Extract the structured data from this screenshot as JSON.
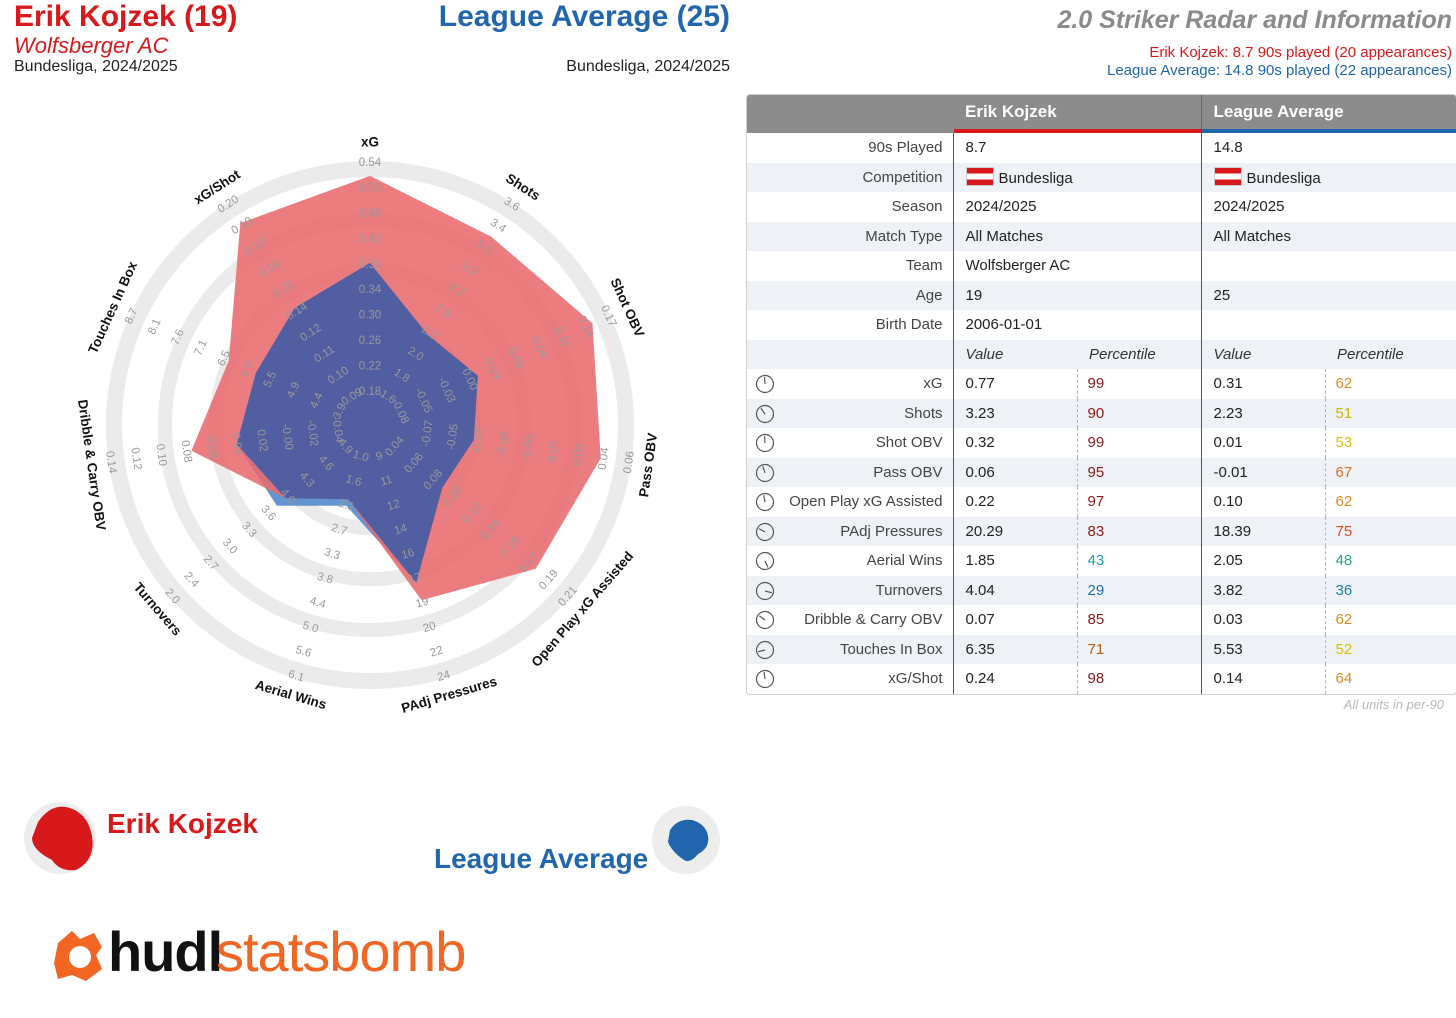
{
  "header": {
    "player_name": "Erik Kojzek (19)",
    "player_team": "Wolfsberger AC",
    "player_comp": "Bundesliga, 2024/2025",
    "avg_name": "League Average (25)",
    "avg_comp": "Bundesliga, 2024/2025",
    "radar_title": "2.0 Striker Radar and Information",
    "player_played": "Erik Kojzek: 8.7 90s played (20 appearances)",
    "avg_played": "League Average: 14.8 90s played (22 appearances)"
  },
  "colors": {
    "player": "#d7191c",
    "player_fill": "#e86b6e",
    "average": "#2166ac",
    "average_fill": "#3a5ba8",
    "ring": "#ebebeb",
    "header_grey": "#8c8c8c",
    "orange": "#f26522"
  },
  "chart_data": {
    "type": "radar",
    "axes": [
      {
        "name": "xG",
        "ticks": [
          "0.18",
          "0.22",
          "0.26",
          "0.30",
          "0.34",
          "0.38",
          "0.42",
          "0.46",
          "0.50",
          "0.54"
        ],
        "player": 0.97,
        "average": 0.59
      },
      {
        "name": "Shots",
        "ticks": [
          "1.6",
          "1.8",
          "2.0",
          "2.2",
          "2.5",
          "2.7",
          "2.9",
          "3.1",
          "3.4",
          "3.6"
        ],
        "player": 0.86,
        "average": 0.35
      },
      {
        "name": "Shot OBV",
        "ticks": [
          "-0.08",
          "-0.05",
          "-0.03",
          "0.00",
          "0.03",
          "0.06",
          "0.09",
          "0.11",
          "0.14",
          "0.17"
        ],
        "player": 0.95,
        "average": 0.4
      },
      {
        "name": "Pass OBV",
        "ticks": [
          "-0.07",
          "-0.05",
          "-0.03",
          "-0.02",
          "-0.00",
          "0.01",
          "0.03",
          "0.04",
          "0.06"
        ],
        "player": 0.9,
        "average": 0.34
      },
      {
        "name": "Open Play xG Assisted",
        "ticks": [
          "0.04",
          "0.06",
          "0.08",
          "0.10",
          "0.12",
          "0.14",
          "0.16",
          "0.17",
          "0.19",
          "0.21"
        ],
        "player": 0.84,
        "average": 0.3
      },
      {
        "name": "PAdj Pressures",
        "ticks": [
          "9",
          "11",
          "12",
          "14",
          "16",
          "17",
          "19",
          "20",
          "22",
          "24"
        ],
        "player": 0.68,
        "average": 0.6
      },
      {
        "name": "Aerial Wins",
        "ticks": [
          "1.0",
          "1.6",
          "2.1",
          "2.7",
          "3.3",
          "3.8",
          "4.4",
          "5.0",
          "5.6",
          "6.1"
        ],
        "player": 0.22,
        "average": 0.25
      },
      {
        "name": "Turnovers",
        "ticks": [
          "4.9",
          "4.6",
          "4.3",
          "4.0",
          "3.6",
          "3.3",
          "3.0",
          "2.7",
          "2.4",
          "2.0"
        ],
        "player": 0.37,
        "average": 0.42
      },
      {
        "name": "Dribble & Carry OBV",
        "ticks": [
          "-0.04",
          "-0.02",
          "-0.00",
          "0.02",
          "0.04",
          "0.06",
          "0.08",
          "0.10",
          "0.12",
          "0.14"
        ],
        "player": 0.67,
        "average": 0.47
      },
      {
        "name": "Touches In Box",
        "ticks": [
          "3.9",
          "4.4",
          "4.9",
          "5.5",
          "6.0",
          "6.5",
          "7.1",
          "7.6",
          "8.1",
          "8.7"
        ],
        "player": 0.56,
        "average": 0.43
      },
      {
        "name": "xG/Shot",
        "ticks": [
          "0.09",
          "0.10",
          "0.11",
          "0.12",
          "0.14",
          "0.15",
          "0.16",
          "0.17",
          "0.19",
          "0.20"
        ],
        "player": 0.93,
        "average": 0.49
      }
    ]
  },
  "legend": {
    "player_label": "Erik Kojzek",
    "avg_label": "League Average"
  },
  "table": {
    "header_player": "Erik Kojzek",
    "header_avg": "League Average",
    "info": [
      {
        "label": "90s Played",
        "player": "8.7",
        "avg": "14.8"
      },
      {
        "label": "Competition",
        "player": "Bundesliga",
        "avg": "Bundesliga",
        "flag": true
      },
      {
        "label": "Season",
        "player": "2024/2025",
        "avg": "2024/2025"
      },
      {
        "label": "Match Type",
        "player": "All Matches",
        "avg": "All Matches"
      },
      {
        "label": "Team",
        "player": "Wolfsberger AC",
        "avg": ""
      },
      {
        "label": "Age",
        "player": "19",
        "avg": "25"
      },
      {
        "label": "Birth Date",
        "player": "2006-01-01",
        "avg": ""
      }
    ],
    "sub_value": "Value",
    "sub_percentile": "Percentile",
    "metrics": [
      {
        "label": "xG",
        "pv": "0.77",
        "pp": "99",
        "ppc": "#8b1a1a",
        "av": "0.31",
        "ap": "62",
        "apc": "#e08a1e",
        "fill": 0.99
      },
      {
        "label": "Shots",
        "pv": "3.23",
        "pp": "90",
        "ppc": "#8b1a1a",
        "av": "2.23",
        "ap": "51",
        "apc": "#c9b800",
        "fill": 0.9
      },
      {
        "label": "Shot OBV",
        "pv": "0.32",
        "pp": "99",
        "ppc": "#8b1a1a",
        "av": "0.01",
        "ap": "53",
        "apc": "#e0c000",
        "fill": 0.99
      },
      {
        "label": "Pass OBV",
        "pv": "0.06",
        "pp": "95",
        "ppc": "#8b1a1a",
        "av": "-0.01",
        "ap": "67",
        "apc": "#e07020",
        "fill": 0.95
      },
      {
        "label": "Open Play xG Assisted",
        "pv": "0.22",
        "pp": "97",
        "ppc": "#8b1a1a",
        "av": "0.10",
        "ap": "62",
        "apc": "#e08a1e",
        "fill": 0.97
      },
      {
        "label": "PAdj Pressures",
        "pv": "20.29",
        "pp": "83",
        "ppc": "#8b1a1a",
        "av": "18.39",
        "ap": "75",
        "apc": "#d05020",
        "fill": 0.83
      },
      {
        "label": "Aerial Wins",
        "pv": "1.85",
        "pp": "43",
        "ppc": "#1fa0a8",
        "av": "2.05",
        "ap": "48",
        "apc": "#28a890",
        "fill": 0.43
      },
      {
        "label": "Turnovers",
        "pv": "4.04",
        "pp": "29",
        "ppc": "#1f6fa8",
        "av": "3.82",
        "ap": "36",
        "apc": "#1f80a8",
        "fill": 0.29
      },
      {
        "label": "Dribble & Carry OBV",
        "pv": "0.07",
        "pp": "85",
        "ppc": "#8b1a1a",
        "av": "0.03",
        "ap": "62",
        "apc": "#e08a1e",
        "fill": 0.85
      },
      {
        "label": "Touches In Box",
        "pv": "6.35",
        "pp": "71",
        "ppc": "#c05a10",
        "av": "5.53",
        "ap": "52",
        "apc": "#d8c000",
        "fill": 0.71
      },
      {
        "label": "xG/Shot",
        "pv": "0.24",
        "pp": "98",
        "ppc": "#8b1a1a",
        "av": "0.14",
        "ap": "64",
        "apc": "#e08a1e",
        "fill": 0.98
      }
    ],
    "units_note": "All units in per-90"
  },
  "logo": {
    "part1": "hudl",
    "part2": "statsbomb"
  }
}
